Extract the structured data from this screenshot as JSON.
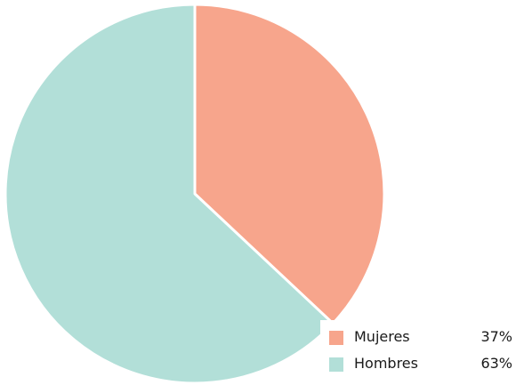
{
  "chart_data": {
    "type": "pie",
    "title": "",
    "series": [
      {
        "name": "Mujeres",
        "value": 37,
        "label": "37%",
        "color": "#F7A58C"
      },
      {
        "name": "Hombres",
        "value": 63,
        "label": "63%",
        "color": "#B2DFD8"
      }
    ],
    "start_angle_deg": 0,
    "direction": "clockwise",
    "slice_border_color": "#ffffff",
    "legend_placement": "bottom-right"
  }
}
